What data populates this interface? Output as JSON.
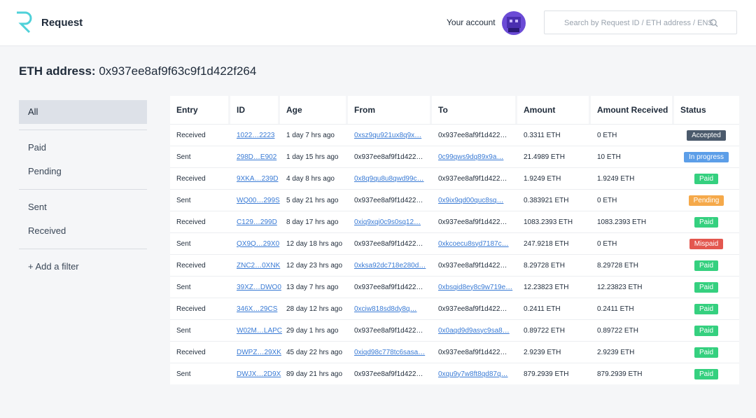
{
  "header": {
    "logo_text": "Request",
    "account": "Your account",
    "search_placeholder": "Search by Request ID / ETH address / ENS"
  },
  "page_title": {
    "label": "ETH address:",
    "address": "0x937ee8af9f63c9f1d422f264"
  },
  "sidebar": {
    "groups": [
      [
        "All"
      ],
      [
        "Paid",
        "Pending"
      ],
      [
        "Sent",
        "Received"
      ]
    ],
    "add_filter": "+ Add a filter"
  },
  "table": {
    "columns": [
      "Entry",
      "ID",
      "Age",
      "From",
      "To",
      "Amount",
      "Amount Received",
      "Status"
    ],
    "rows": [
      [
        "Received",
        "1022…2223",
        "1 day 7 hrs ago",
        "0xsz9qu921ux8q9x…",
        "0x937ee8af9f1d422…",
        "0.3311 ETH",
        "0 ETH",
        "Accepted"
      ],
      [
        "Sent",
        "298D…E902",
        "1 day 15 hrs ago",
        "0x937ee8af9f1d422…",
        "0c99qws9dq89x9a…",
        "21.4989 ETH",
        "10 ETH",
        "In progress"
      ],
      [
        "Received",
        "9XKA…239D",
        "4 day 8 hrs ago",
        "0x8q9qu8u8qwd99c…",
        "0x937ee8af9f1d422…",
        "1.9249 ETH",
        "1.9249 ETH",
        "Paid"
      ],
      [
        "Sent",
        "WQ00…299S",
        "5 day 21 hrs ago",
        "0x937ee8af9f1d422…",
        "0x9ix9qd00quc8sq…",
        "0.383921 ETH",
        "0 ETH",
        "Pending"
      ],
      [
        "Received",
        "C129…299D",
        "8 day 17 hrs ago",
        "0xiq9xqi0c9s0sq12…",
        "0x937ee8af9f1d422…",
        "1083.2393 ETH",
        "1083.2393 ETH",
        "Paid"
      ],
      [
        "Sent",
        "QX9Q…29X0",
        "12 day 18 hrs ago",
        "0x937ee8af9f1d422…",
        "0xkcoecu8syd7187c…",
        "247.9218 ETH",
        "0 ETH",
        "Mispaid"
      ],
      [
        "Received",
        "ZNC2…0XNK",
        "12 day 23 hrs ago",
        "0xksa92dc718e280d…",
        "0x937ee8af9f1d422…",
        "8.29728 ETH",
        "8.29728 ETH",
        "Paid"
      ],
      [
        "Sent",
        "39XZ…DWO0",
        "13 day 7 hrs ago",
        "0x937ee8af9f1d422…",
        "0xbsqid8ey8c9w719e…",
        "12.23823 ETH",
        "12.23823 ETH",
        "Paid"
      ],
      [
        "Received",
        "346X…29CS",
        "28 day 12 hrs ago",
        "0xciw818sd8dy8q…",
        "0x937ee8af9f1d422…",
        "0.2411 ETH",
        "0.2411 ETH",
        "Paid"
      ],
      [
        "Sent",
        "W02M…LAPC",
        "29 day 1 hrs ago",
        "0x937ee8af9f1d422…",
        "0x0aqd9d9asyc9sa8…",
        "0.89722 ETH",
        "0.89722 ETH",
        "Paid"
      ],
      [
        "Received",
        "DWPZ…29XK",
        "45 day 22 hrs ago",
        "0xiqd98c778tc6sasa…",
        "0x937ee8af9f1d422…",
        "2.9239 ETH",
        "2.9239 ETH",
        "Paid"
      ],
      [
        "Sent",
        "DWJX…2D9X",
        "89 day 21 hrs ago",
        "0x937ee8af9f1d422…",
        "0xqu9y7w8ft8qd87q…",
        "879.2939 ETH",
        "879.2939 ETH",
        "Paid"
      ]
    ],
    "status_colors": {
      "Accepted": "#4b5a6c",
      "In progress": "#5c9ee8",
      "Paid": "#35d07f",
      "Pending": "#f5a94a",
      "Mispaid": "#e3574f"
    }
  }
}
